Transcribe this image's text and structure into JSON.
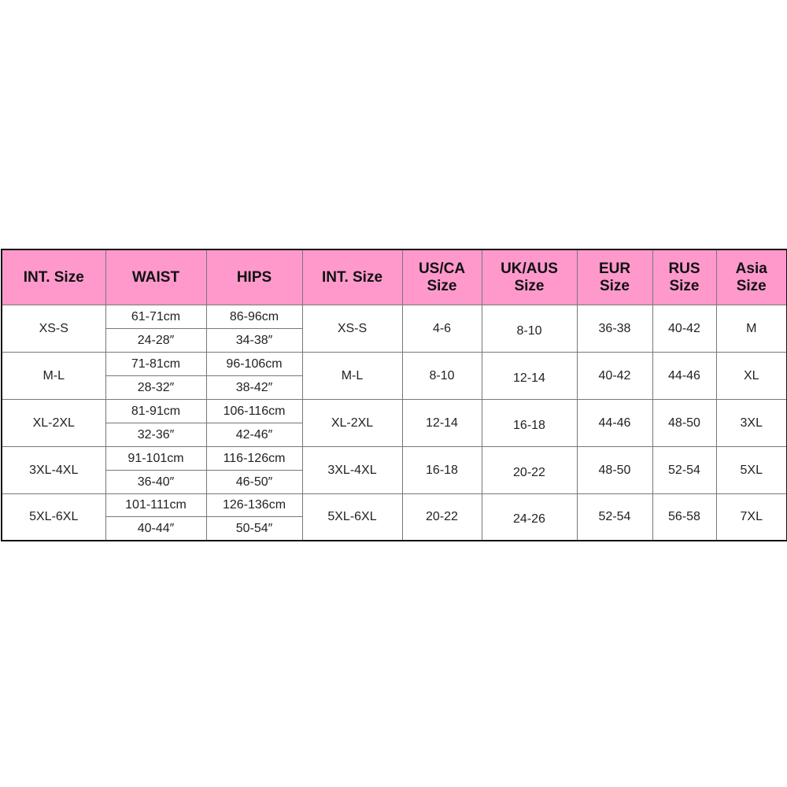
{
  "header_color": "#ff99cc",
  "headers": [
    "INT. Size",
    "WAIST",
    "HIPS",
    "INT. Size",
    "US/CA Size",
    "UK/AUS Size",
    "EUR Size",
    "RUS Size",
    "Asia Size"
  ],
  "rows": [
    {
      "int": "XS-S",
      "waist_cm": "61-71cm",
      "waist_in": "24-28″",
      "hips_cm": "86-96cm",
      "hips_in": "34-38″",
      "int2": "XS-S",
      "us": "4-6",
      "uk": "8-10",
      "eur": "36-38",
      "rus": "40-42",
      "asia": "M"
    },
    {
      "int": "M-L",
      "waist_cm": "71-81cm",
      "waist_in": "28-32″",
      "hips_cm": "96-106cm",
      "hips_in": "38-42″",
      "int2": "M-L",
      "us": "8-10",
      "uk": "12-14",
      "eur": "40-42",
      "rus": "44-46",
      "asia": "XL"
    },
    {
      "int": "XL-2XL",
      "waist_cm": "81-91cm",
      "waist_in": "32-36″",
      "hips_cm": "106-116cm",
      "hips_in": "42-46″",
      "int2": "XL-2XL",
      "us": "12-14",
      "uk": "16-18",
      "eur": "44-46",
      "rus": "48-50",
      "asia": "3XL"
    },
    {
      "int": "3XL-4XL",
      "waist_cm": "91-101cm",
      "waist_in": "36-40″",
      "hips_cm": "116-126cm",
      "hips_in": "46-50″",
      "int2": "3XL-4XL",
      "us": "16-18",
      "uk": "20-22",
      "eur": "48-50",
      "rus": "52-54",
      "asia": "5XL"
    },
    {
      "int": "5XL-6XL",
      "waist_cm": "101-111cm",
      "waist_in": "40-44″",
      "hips_cm": "126-136cm",
      "hips_in": "50-54″",
      "int2": "5XL-6XL",
      "us": "20-22",
      "uk": "24-26",
      "eur": "52-54",
      "rus": "56-58",
      "asia": "7XL"
    }
  ]
}
